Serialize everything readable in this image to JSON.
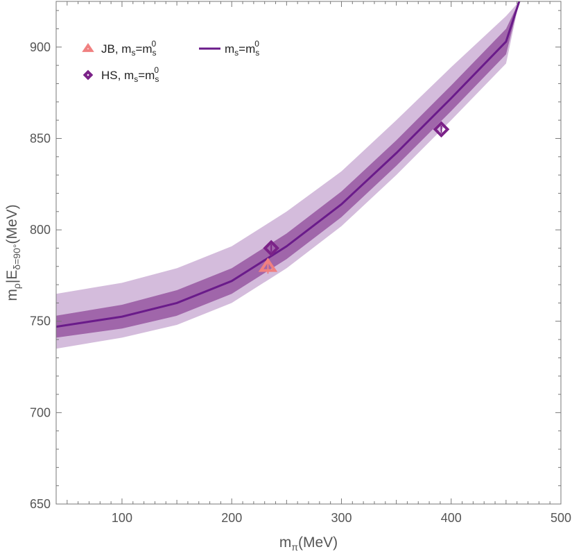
{
  "chart_data": {
    "type": "line",
    "xlim": [
      40,
      500
    ],
    "ylim": [
      650,
      925
    ],
    "xticks": [
      100,
      200,
      300,
      400,
      500
    ],
    "yticks": [
      650,
      700,
      750,
      800,
      850,
      900
    ],
    "xlabel_main": "m",
    "xlabel_sub": "π",
    "xlabel_unit": "(MeV)",
    "ylabel_main": "m",
    "ylabel_sub1": "ρ",
    "ylabel_mid": "|E",
    "ylabel_sub2": "δ=90°",
    "ylabel_unit": "(MeV)",
    "grid": false,
    "legend_position": "top-left",
    "colors": {
      "line": "#6a1b8a",
      "band_inner": "#a066aa",
      "band_outer": "#d4bcdc",
      "jb": "#f08080",
      "hs": "#7b2288"
    },
    "central_line": {
      "x": [
        40,
        100,
        150,
        200,
        250,
        300,
        350,
        400,
        450,
        462
      ],
      "y": [
        747,
        752.5,
        760,
        772,
        791,
        814,
        842,
        872,
        903,
        925
      ]
    },
    "band_inner": {
      "x": [
        40,
        100,
        150,
        200,
        250,
        300,
        350,
        400,
        450,
        462
      ],
      "lower": [
        741,
        746,
        753,
        765,
        784,
        807,
        835,
        865,
        896,
        925
      ],
      "upper": [
        753,
        759,
        767,
        779,
        798,
        821,
        849,
        879,
        910,
        925
      ]
    },
    "band_outer": {
      "x": [
        40,
        100,
        150,
        200,
        250,
        300,
        350,
        400,
        450,
        462
      ],
      "lower": [
        735,
        741,
        748,
        760,
        779,
        802,
        830,
        860,
        891,
        925
      ],
      "upper": [
        765,
        771,
        779,
        791,
        810,
        832,
        860,
        889,
        917,
        925
      ]
    },
    "series": [
      {
        "name": "JB",
        "marker": "triangle",
        "points": [
          {
            "x": 233,
            "y": 780,
            "err": 4
          }
        ]
      },
      {
        "name": "HS",
        "marker": "diamond",
        "points": [
          {
            "x": 236,
            "y": 790,
            "err": 2
          },
          {
            "x": 391,
            "y": 855,
            "err": 2
          }
        ]
      }
    ],
    "legend": [
      {
        "marker": "triangle",
        "prefix": "JB, m",
        "sub1": "s",
        "mid": "=m",
        "sub2": "s",
        "sup": "0"
      },
      {
        "marker": "diamond",
        "prefix": "HS, m",
        "sub1": "s",
        "mid": "=m",
        "sub2": "s",
        "sup": "0"
      },
      {
        "marker": "line",
        "prefix": "m",
        "sub1": "s",
        "mid": "=m",
        "sub2": "s",
        "sup": "0"
      }
    ]
  }
}
